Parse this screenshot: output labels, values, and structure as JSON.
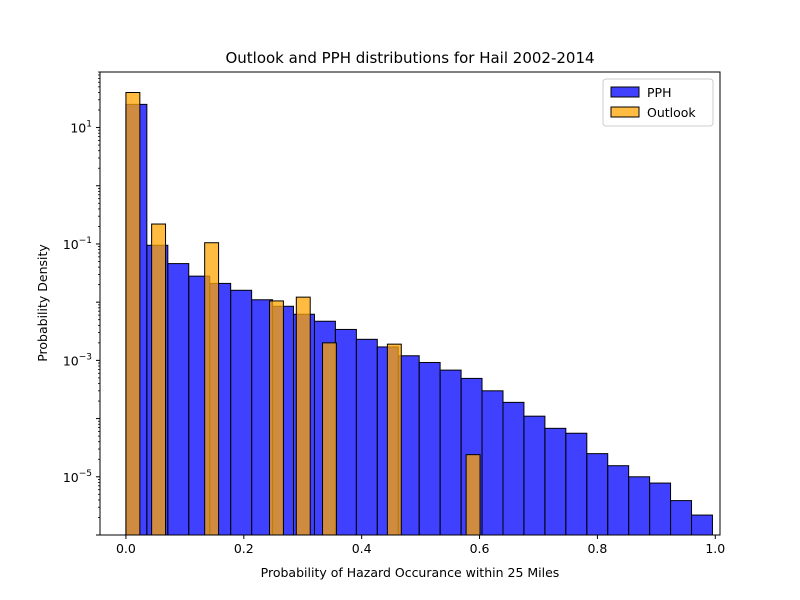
{
  "chart_data": {
    "type": "bar",
    "title": "Outlook and PPH distributions for Hail 2002-2014",
    "xlabel": "Probability of Hazard Occurance within 25 Miles",
    "ylabel": "Probability Density",
    "xlim": [
      -0.044,
      1.008
    ],
    "ylim": [
      1e-06,
      90
    ],
    "yscale": "log",
    "grid": false,
    "legend_position": "top-right",
    "x_ticks": [
      {
        "value": 0.0,
        "label": "0.0"
      },
      {
        "value": 0.2,
        "label": "0.2"
      },
      {
        "value": 0.4,
        "label": "0.4"
      },
      {
        "value": 0.6,
        "label": "0.6"
      },
      {
        "value": 0.8,
        "label": "0.8"
      },
      {
        "value": 1.0,
        "label": "1.0"
      }
    ],
    "y_ticks": [
      {
        "value": 1e-05,
        "base": "10",
        "exp": "−5"
      },
      {
        "value": 0.001,
        "base": "10",
        "exp": "−3"
      },
      {
        "value": 0.1,
        "base": "10",
        "exp": "−1"
      },
      {
        "value": 10,
        "base": "10",
        "exp": "1"
      }
    ],
    "series": [
      {
        "name": "PPH",
        "color": "#0000ff",
        "edge_color": "#000000",
        "opacity": 0.75,
        "bins": [
          {
            "x0": 0.0,
            "x1": 0.0355,
            "value": 25
          },
          {
            "x0": 0.0355,
            "x1": 0.0711,
            "value": 0.095
          },
          {
            "x0": 0.0711,
            "x1": 0.1066,
            "value": 0.046
          },
          {
            "x0": 0.1066,
            "x1": 0.1422,
            "value": 0.028
          },
          {
            "x0": 0.1422,
            "x1": 0.1777,
            "value": 0.021
          },
          {
            "x0": 0.1777,
            "x1": 0.2133,
            "value": 0.016
          },
          {
            "x0": 0.2133,
            "x1": 0.2488,
            "value": 0.011
          },
          {
            "x0": 0.2488,
            "x1": 0.2843,
            "value": 0.0085
          },
          {
            "x0": 0.2843,
            "x1": 0.3199,
            "value": 0.0062
          },
          {
            "x0": 0.3199,
            "x1": 0.3554,
            "value": 0.0047
          },
          {
            "x0": 0.3554,
            "x1": 0.391,
            "value": 0.0034
          },
          {
            "x0": 0.391,
            "x1": 0.4265,
            "value": 0.0023
          },
          {
            "x0": 0.4265,
            "x1": 0.4621,
            "value": 0.0017
          },
          {
            "x0": 0.4621,
            "x1": 0.4976,
            "value": 0.0012
          },
          {
            "x0": 0.4976,
            "x1": 0.5331,
            "value": 0.00092
          },
          {
            "x0": 0.5331,
            "x1": 0.5687,
            "value": 0.00068
          },
          {
            "x0": 0.5687,
            "x1": 0.6042,
            "value": 0.00049
          },
          {
            "x0": 0.6042,
            "x1": 0.6398,
            "value": 0.0003
          },
          {
            "x0": 0.6398,
            "x1": 0.6753,
            "value": 0.00019
          },
          {
            "x0": 0.6753,
            "x1": 0.7109,
            "value": 0.00011
          },
          {
            "x0": 0.7109,
            "x1": 0.7464,
            "value": 6.8e-05
          },
          {
            "x0": 0.7464,
            "x1": 0.782,
            "value": 5.6e-05
          },
          {
            "x0": 0.782,
            "x1": 0.8175,
            "value": 2.5e-05
          },
          {
            "x0": 0.8175,
            "x1": 0.853,
            "value": 1.55e-05
          },
          {
            "x0": 0.853,
            "x1": 0.8886,
            "value": 1e-05
          },
          {
            "x0": 0.8886,
            "x1": 0.9241,
            "value": 7.8e-06
          },
          {
            "x0": 0.9241,
            "x1": 0.9597,
            "value": 3.9e-06
          },
          {
            "x0": 0.9597,
            "x1": 0.9952,
            "value": 2.2e-06
          }
        ]
      },
      {
        "name": "Outlook",
        "color": "#ffa500",
        "edge_color": "#000000",
        "opacity": 0.75,
        "bins": [
          {
            "x0": 0.0,
            "x1": 0.0236,
            "value": 40
          },
          {
            "x0": 0.0436,
            "x1": 0.0672,
            "value": 0.22
          },
          {
            "x0": 0.1336,
            "x1": 0.1572,
            "value": 0.105
          },
          {
            "x0": 0.2436,
            "x1": 0.2672,
            "value": 0.0105
          },
          {
            "x0": 0.2891,
            "x1": 0.3127,
            "value": 0.0122
          },
          {
            "x0": 0.3336,
            "x1": 0.3572,
            "value": 0.002
          },
          {
            "x0": 0.4436,
            "x1": 0.4672,
            "value": 0.0019
          },
          {
            "x0": 0.5772,
            "x1": 0.6008,
            "value": 2.4e-05
          }
        ]
      }
    ]
  }
}
